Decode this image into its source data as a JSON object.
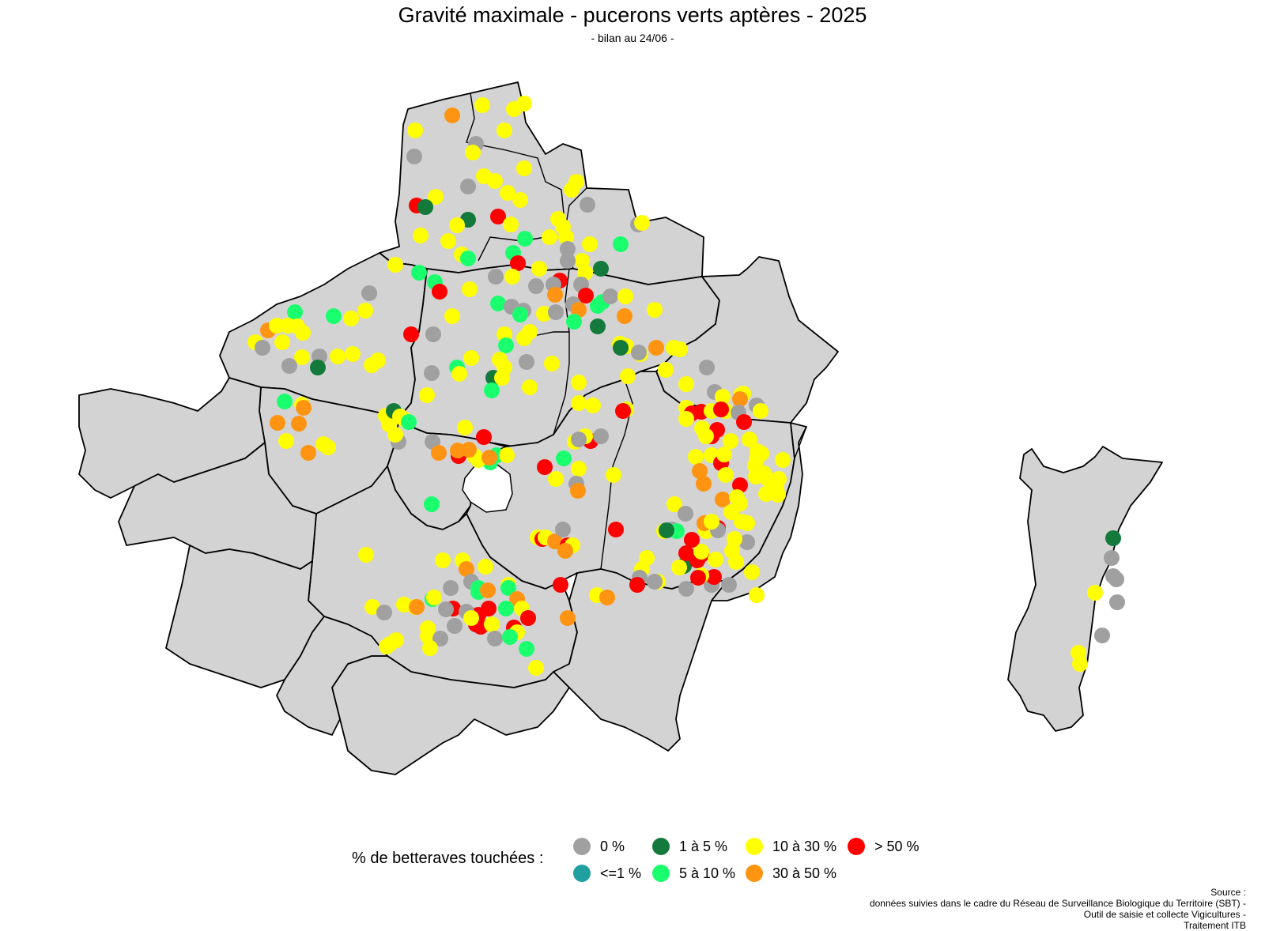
{
  "title": "Gravité maximale - pucerons verts aptères - 2025",
  "subtitle": "- bilan au 24/06 -",
  "legend": {
    "title": "% de betteraves touchées :",
    "items": [
      {
        "label": "0 %",
        "color": "#a0a0a0"
      },
      {
        "label": "<=1 %",
        "color": "#20a0a0"
      },
      {
        "label": "1 à 5 %",
        "color": "#137a3c"
      },
      {
        "label": "5 à 10 %",
        "color": "#1aff6e"
      },
      {
        "label": "10 à 30 %",
        "color": "#ffff00"
      },
      {
        "label": "30 à 50 %",
        "color": "#ff9412"
      },
      {
        "label": "> 50 %",
        "color": "#ff0000"
      }
    ]
  },
  "source": {
    "line1": "Source :",
    "line2": "données suivies dans le cadre du Réseau de Surveillance Biologique du Territoire (SBT) -",
    "line3": "Outil de saisie et collecte Vigicultures -",
    "line4": "Traitement ITB"
  },
  "map_style": {
    "land_color": "#d3d3d3",
    "border_color": "#000000"
  }
}
